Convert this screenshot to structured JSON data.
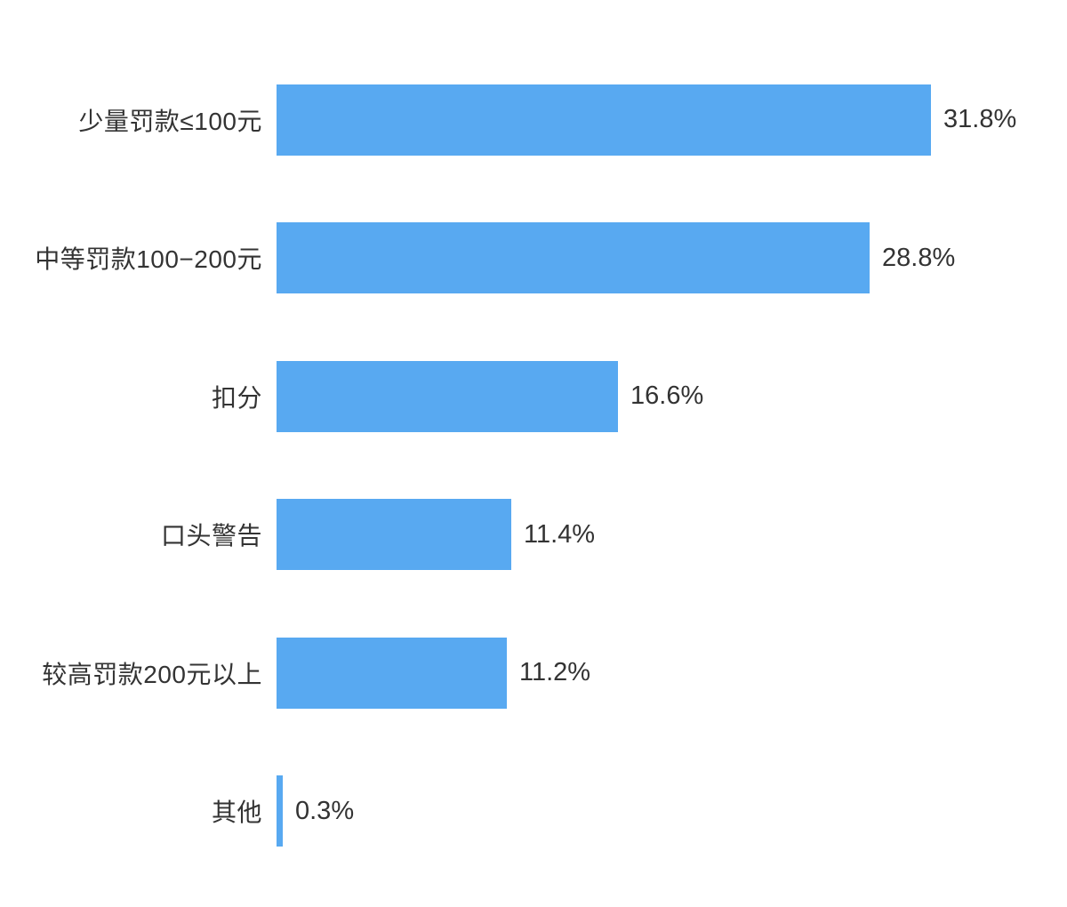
{
  "chart_data": {
    "type": "bar",
    "orientation": "horizontal",
    "title": "",
    "xlabel": "",
    "ylabel": "",
    "categories": [
      "少量罚款≤100元",
      "中等罚款100−200元",
      "扣分",
      "口头警告",
      "较高罚款200元以上",
      "其他"
    ],
    "values": [
      31.8,
      28.8,
      16.6,
      11.4,
      11.2,
      0.3
    ],
    "value_labels": [
      "31.8%",
      "28.8%",
      "16.6%",
      "11.4%",
      "11.2%",
      "0.3%"
    ],
    "unit": "%",
    "xlim": [
      0,
      31.8
    ],
    "grid": false,
    "legend": false,
    "axes_visible": false,
    "bar_color": "#58A9F1",
    "text_color": "#333333",
    "background_color": "#FFFFFF"
  }
}
